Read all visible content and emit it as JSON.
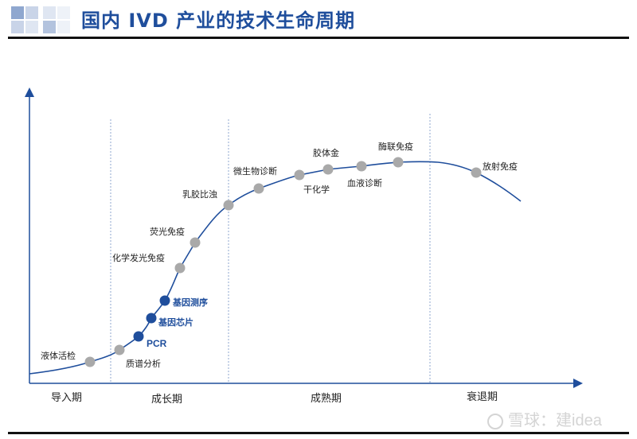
{
  "header": {
    "title": "国内 IVD  产业的技术生命周期"
  },
  "phases": [
    "导入期",
    "成长期",
    "成熟期",
    "衰退期"
  ],
  "markers": [
    {
      "label": "液体活检",
      "color": "gray"
    },
    {
      "label": "质谱分析",
      "color": "gray"
    },
    {
      "label": "PCR",
      "color": "blue"
    },
    {
      "label": "基因芯片",
      "color": "blue"
    },
    {
      "label": "基因测序",
      "color": "blue"
    },
    {
      "label": "化学发光免疫",
      "color": "gray"
    },
    {
      "label": "荧光免疫",
      "color": "gray"
    },
    {
      "label": "乳胶比浊",
      "color": "gray"
    },
    {
      "label": "微生物诊断",
      "color": "gray"
    },
    {
      "label": "干化学",
      "color": "gray"
    },
    {
      "label": "胶体金",
      "color": "gray"
    },
    {
      "label": "血液诊断",
      "color": "gray"
    },
    {
      "label": "酶联免疫",
      "color": "gray"
    },
    {
      "label": "放射免疫",
      "color": "gray"
    }
  ],
  "colors": {
    "title": "#1f4e9c",
    "curve": "#1f4e9c",
    "marker_gray": "#a9a9a9",
    "marker_blue": "#1f4e9c"
  },
  "watermark": {
    "text": "雪球：建idea"
  }
}
